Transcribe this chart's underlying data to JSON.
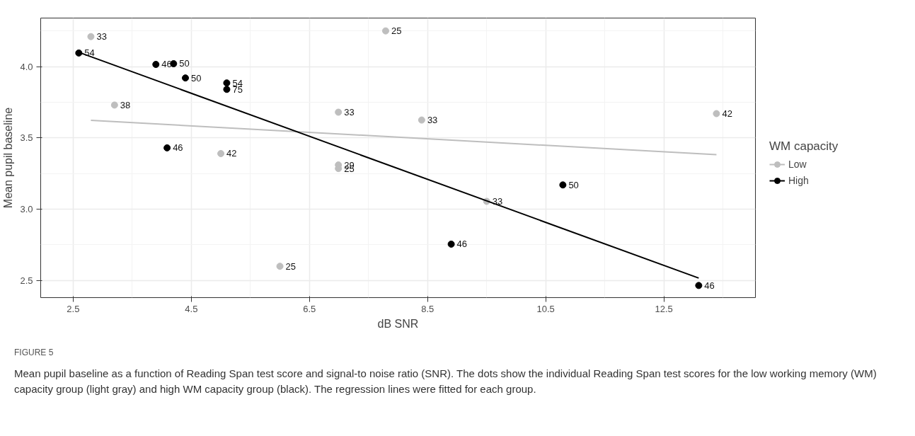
{
  "chart_data": {
    "type": "scatter",
    "xlabel": "dB SNR",
    "ylabel": "Mean pupil baseline",
    "legend_title": "WM capacity",
    "legend": "right",
    "grid": true,
    "marker": "circle",
    "xlim": [
      1.95,
      14.05
    ],
    "ylim": [
      2.38,
      4.34
    ],
    "xticks": [
      2.5,
      4.5,
      6.5,
      8.5,
      10.5,
      12.5
    ],
    "yticks": [
      2.5,
      {
        "value": 3,
        "label": "3.0"
      },
      3.5,
      {
        "value": 4,
        "label": "4.0"
      }
    ],
    "series": [
      {
        "name": "Low",
        "color": "#bebebe",
        "x": [
          2.8,
          3.2,
          5.0,
          6.0,
          7.79,
          6.99,
          8.4,
          6.99,
          6.99,
          9.5,
          13.39
        ],
        "values": [
          4.21,
          3.73,
          3.39,
          2.6,
          4.25,
          3.68,
          3.625,
          3.31,
          3.285,
          3.055,
          3.67
        ]
      },
      {
        "name": "High",
        "color": "#000000",
        "x": [
          2.595,
          3.9,
          4.2,
          4.4,
          5.1,
          5.1,
          4.09,
          8.9,
          10.79,
          13.09
        ],
        "values": [
          4.095,
          4.015,
          4.02,
          3.92,
          3.885,
          3.84,
          3.43,
          2.755,
          3.17,
          2.465
        ]
      },
      {
        "type": "line",
        "color": "#bebebe",
        "x": [
          2.8,
          13.39
        ],
        "values": [
          3.623,
          3.382
        ],
        "marker": "none"
      },
      {
        "type": "line",
        "color": "#000000",
        "x": [
          2.595,
          13.09
        ],
        "values": [
          4.1,
          2.517
        ],
        "marker": "none"
      }
    ],
    "annotations": [
      {
        "text": "33",
        "x": 2.8,
        "y": 4.21
      },
      {
        "text": "38",
        "x": 3.2,
        "y": 3.73
      },
      {
        "text": "42",
        "x": 5.0,
        "y": 3.39
      },
      {
        "text": "25",
        "x": 6.0,
        "y": 2.6
      },
      {
        "text": "25",
        "x": 7.79,
        "y": 4.25
      },
      {
        "text": "33",
        "x": 6.99,
        "y": 3.68
      },
      {
        "text": "33",
        "x": 8.4,
        "y": 3.625
      },
      {
        "text": "29",
        "x": 6.99,
        "y": 3.31
      },
      {
        "text": "25",
        "x": 6.99,
        "y": 3.285
      },
      {
        "text": "33",
        "x": 9.5,
        "y": 3.055
      },
      {
        "text": "42",
        "x": 13.39,
        "y": 3.67
      },
      {
        "text": "54",
        "x": 2.595,
        "y": 4.095
      },
      {
        "text": "46",
        "x": 3.9,
        "y": 4.015
      },
      {
        "text": "50",
        "x": 4.2,
        "y": 4.02
      },
      {
        "text": "50",
        "x": 4.4,
        "y": 3.92
      },
      {
        "text": "54",
        "x": 5.1,
        "y": 3.885
      },
      {
        "text": "75",
        "x": 5.1,
        "y": 3.84
      },
      {
        "text": "46",
        "x": 4.09,
        "y": 3.43
      },
      {
        "text": "46",
        "x": 8.9,
        "y": 2.755
      },
      {
        "text": "50",
        "x": 10.79,
        "y": 3.17
      },
      {
        "text": "46",
        "x": 13.09,
        "y": 2.465
      },
      "FIGURE 5",
      "Mean pupil baseline as a function of Reading Span test score and signal-to noise ratio (SNR). The dots show the individual Reading Span test scores for the low working memory (WM) capacity group (light gray) and high WM capacity group (black). The regression lines were fitted for each group."
    ]
  }
}
